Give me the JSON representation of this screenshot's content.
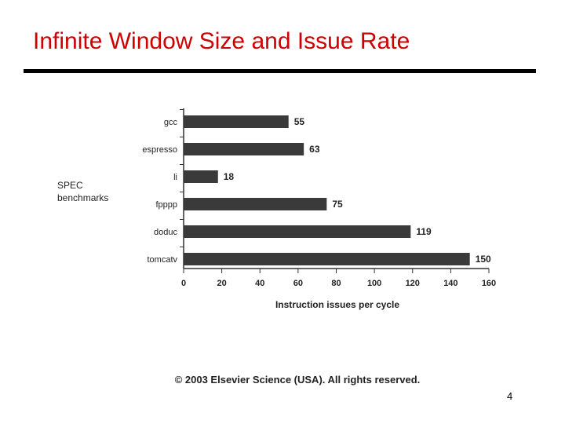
{
  "slide": {
    "title": "Infinite Window Size and Issue Rate",
    "copyright": "© 2003 Elsevier Science (USA). All rights reserved.",
    "page_number": "4"
  },
  "colors": {
    "title": "#cc0000",
    "bar": "#3a3a3a",
    "rule": "#000000"
  },
  "chart_data": {
    "type": "bar",
    "orientation": "horizontal",
    "categories": [
      "gcc",
      "espresso",
      "li",
      "fpppp",
      "doduc",
      "tomcatv"
    ],
    "values": [
      55,
      63,
      18,
      75,
      119,
      150
    ],
    "xlabel": "Instruction issues per cycle",
    "ylabel": [
      "SPEC",
      "benchmarks"
    ],
    "xlim": [
      0,
      160
    ],
    "xticks": [
      0,
      20,
      40,
      60,
      80,
      100,
      120,
      140,
      160
    ],
    "grid": false,
    "legend": "none"
  }
}
